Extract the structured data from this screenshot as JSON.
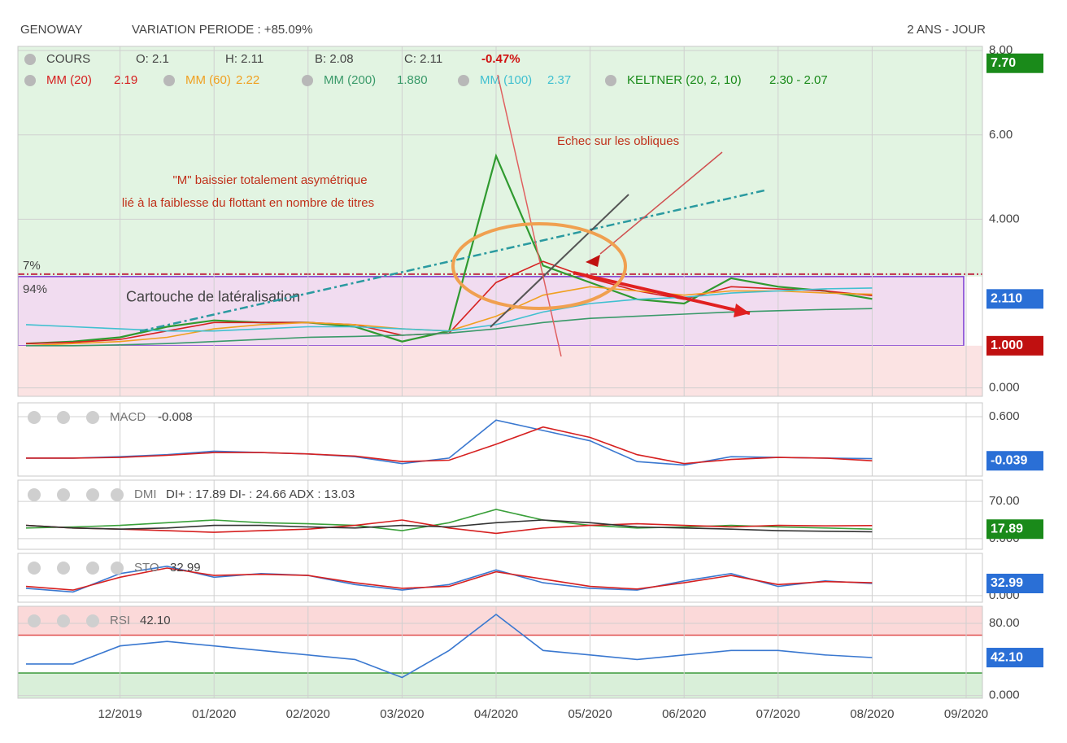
{
  "header": {
    "ticker": "GENOWAY",
    "variation": "VARIATION PERIODE : +85.09%",
    "period": "2 ANS - JOUR"
  },
  "chart_data": [
    {
      "type": "line",
      "categories": [
        null,
        null,
        "12/2019",
        null,
        "01/2020",
        null,
        "02/2020",
        null,
        "03/2020",
        null,
        "04/2020",
        null,
        "05/2020",
        null,
        "06/2020",
        null,
        "07/2020",
        null,
        "08/2020",
        null,
        "09/2020"
      ],
      "ylim": [
        -0.2,
        8.1
      ],
      "yticks": [
        {
          "value": 0,
          "label": "0.000"
        },
        {
          "value": 4,
          "label": "4.000"
        },
        {
          "value": 6,
          "label": "6.00"
        },
        {
          "value": 8,
          "label": "8.00"
        }
      ],
      "grid": true,
      "quote": {
        "name": "COURS",
        "items": [
          "O: 2.1",
          "H: 2.11",
          "B: 2.08",
          "C: 2.11"
        ],
        "change": "-0.47%"
      },
      "series": [
        {
          "name": "COURS",
          "color": "#2f9a2f",
          "values": [
            1.05,
            1.1,
            1.2,
            1.45,
            1.6,
            1.55,
            1.55,
            1.45,
            1.1,
            1.35,
            5.5,
            2.9,
            2.5,
            2.1,
            2.0,
            2.6,
            2.4,
            2.3,
            2.11,
            null,
            null
          ]
        },
        {
          "name": "MM (20)",
          "last": "2.19",
          "color": "#d62020",
          "values": [
            1.05,
            1.08,
            1.15,
            1.35,
            1.55,
            1.55,
            1.55,
            1.5,
            1.25,
            1.3,
            2.5,
            3.0,
            2.6,
            2.3,
            2.1,
            2.4,
            2.35,
            2.3,
            2.19,
            null,
            null
          ]
        },
        {
          "name": "MM (60)",
          "last": "2.22",
          "color": "#f0a020",
          "values": [
            1.0,
            1.05,
            1.1,
            1.2,
            1.4,
            1.5,
            1.55,
            1.5,
            1.4,
            1.35,
            1.7,
            2.2,
            2.4,
            2.3,
            2.2,
            2.3,
            2.3,
            2.25,
            2.22,
            null,
            null
          ]
        },
        {
          "name": "MM (200)",
          "last": "1.880",
          "color": "#3a9a6a",
          "values": [
            1.0,
            1.0,
            1.02,
            1.05,
            1.1,
            1.15,
            1.2,
            1.22,
            1.25,
            1.3,
            1.4,
            1.55,
            1.65,
            1.7,
            1.75,
            1.8,
            1.83,
            1.86,
            1.88,
            null,
            null
          ]
        },
        {
          "name": "MM (100)",
          "last": "2.37",
          "color": "#40c0d0",
          "values": [
            1.5,
            1.45,
            1.4,
            1.35,
            1.35,
            1.4,
            1.45,
            1.45,
            1.4,
            1.35,
            1.5,
            1.8,
            2.0,
            2.1,
            2.15,
            2.25,
            2.3,
            2.35,
            2.37,
            null,
            null
          ]
        }
      ],
      "indicator": {
        "name": "KELTNER (20, 2, 10)",
        "last": "2.30 - 2.07",
        "color": "#1a8a1a"
      },
      "range_box": {
        "low": 1.0,
        "high": 2.64,
        "label": "Cartouche de latéralisation",
        "upper_label": "7%",
        "lower_label": "94%"
      },
      "annotations": [
        "\"M\" baissier totalement asymétrique",
        "lié à la faiblesse du flottant en nombre de titres",
        "Echec sur les obliques"
      ],
      "badges": [
        {
          "value": 7.7,
          "label": "7.70",
          "color": "#1a8a1a"
        },
        {
          "value": 2.11,
          "label": "2.110",
          "color": "#2a6fd6"
        },
        {
          "value": 1.0,
          "label": "1.000",
          "color": "#c01010"
        }
      ]
    },
    {
      "type": "line",
      "title": "MACD",
      "subtitle": "-0.008",
      "ylim": [
        -0.26,
        0.8
      ],
      "yticks": [
        {
          "value": 0.6,
          "label": "0.600"
        }
      ],
      "series": [
        {
          "name": "MACD",
          "color": "#3a78d0",
          "values": [
            0,
            0,
            0.02,
            0.05,
            0.1,
            0.08,
            0.06,
            0.02,
            -0.08,
            0.0,
            0.55,
            0.4,
            0.25,
            -0.05,
            -0.1,
            0.02,
            0.01,
            0.0,
            -0.008,
            null,
            null
          ]
        },
        {
          "name": "Signal",
          "color": "#d62020",
          "values": [
            0,
            0,
            0.01,
            0.04,
            0.08,
            0.08,
            0.06,
            0.03,
            -0.05,
            -0.03,
            0.2,
            0.45,
            0.3,
            0.05,
            -0.08,
            -0.02,
            0.01,
            0.0,
            -0.039,
            null,
            null
          ]
        }
      ],
      "badges": [
        {
          "value": -0.039,
          "label": "-0.039",
          "color": "#2a6fd6"
        }
      ]
    },
    {
      "type": "line",
      "title": "DMI",
      "subtitle": "DI+ : 17.89 DI- : 24.66 ADX : 13.03",
      "ylim": [
        -20,
        110
      ],
      "yticks": [
        {
          "value": 0,
          "label": "0.000"
        },
        {
          "value": 70,
          "label": "70.00"
        }
      ],
      "series": [
        {
          "name": "DI+",
          "color": "#3aa03a",
          "values": [
            20,
            22,
            25,
            30,
            35,
            30,
            28,
            25,
            15,
            30,
            55,
            35,
            25,
            20,
            22,
            25,
            22,
            20,
            17.89,
            null,
            null
          ]
        },
        {
          "name": "DI-",
          "color": "#d62020",
          "values": [
            25,
            20,
            18,
            15,
            12,
            15,
            18,
            25,
            35,
            20,
            10,
            20,
            25,
            28,
            25,
            22,
            25,
            24,
            24.66,
            null,
            null
          ]
        },
        {
          "name": "ADX",
          "color": "#333333",
          "values": [
            25,
            20,
            18,
            20,
            25,
            25,
            22,
            20,
            25,
            22,
            30,
            35,
            30,
            22,
            20,
            18,
            15,
            14,
            13.03,
            null,
            null
          ]
        }
      ],
      "badges": [
        {
          "value": 17.89,
          "label": "17.89",
          "color": "#1a8a1a"
        }
      ]
    },
    {
      "type": "line",
      "title": "STO",
      "subtitle": "32.99",
      "ylim": [
        -18,
        115
      ],
      "yticks": [
        {
          "value": 0,
          "label": "0.000"
        }
      ],
      "series": [
        {
          "name": "%K",
          "color": "#3a78d0",
          "values": [
            20,
            10,
            60,
            80,
            50,
            60,
            55,
            30,
            15,
            30,
            70,
            35,
            20,
            15,
            40,
            60,
            25,
            40,
            32.99,
            null,
            null
          ]
        },
        {
          "name": "%D",
          "color": "#d62020",
          "values": [
            25,
            15,
            50,
            75,
            55,
            58,
            55,
            35,
            20,
            25,
            65,
            45,
            25,
            18,
            35,
            55,
            30,
            38,
            35,
            null,
            null
          ]
        }
      ],
      "badges": [
        {
          "value": 32.99,
          "label": "32.99",
          "color": "#2a6fd6"
        }
      ]
    },
    {
      "type": "line",
      "title": "RSI",
      "subtitle": "42.10",
      "ylim": [
        -3,
        99
      ],
      "yticks": [
        {
          "value": 0,
          "label": "0.000"
        },
        {
          "value": 80,
          "label": "80.00"
        }
      ],
      "levels": [
        {
          "value": 67,
          "color": "#e05050",
          "fill": "#fbd9d9",
          "side": "above"
        },
        {
          "value": 25,
          "color": "#3a9a3a",
          "fill": "#d9efd9",
          "side": "below"
        }
      ],
      "series": [
        {
          "name": "RSI",
          "color": "#3a78d0",
          "values": [
            35,
            35,
            55,
            60,
            55,
            50,
            45,
            40,
            20,
            50,
            90,
            50,
            45,
            40,
            45,
            50,
            50,
            45,
            42.1,
            null,
            null
          ]
        }
      ],
      "badges": [
        {
          "value": 42.1,
          "label": "42.10",
          "color": "#2a6fd6"
        }
      ]
    }
  ]
}
